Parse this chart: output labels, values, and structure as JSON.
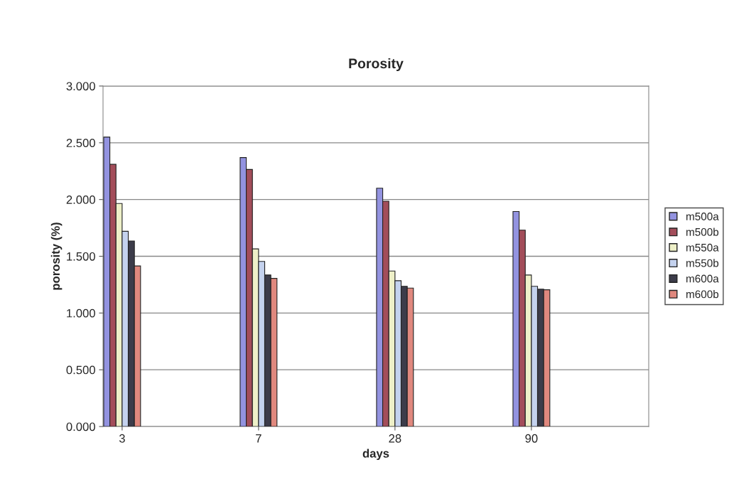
{
  "chart_data": {
    "type": "bar",
    "title": "Porosity",
    "xlabel": "days",
    "ylabel": "porosity (%)",
    "categories": [
      "3",
      "7",
      "28",
      "90"
    ],
    "series": [
      {
        "name": "m500a",
        "color": "#9393e0",
        "values": [
          2.55,
          2.37,
          2.1,
          1.895
        ]
      },
      {
        "name": "m500b",
        "color": "#a34d5a",
        "values": [
          2.31,
          2.265,
          1.985,
          1.73
        ]
      },
      {
        "name": "m550a",
        "color": "#eef0c8",
        "values": [
          1.965,
          1.565,
          1.37,
          1.335
        ]
      },
      {
        "name": "m550b",
        "color": "#c4d2ee",
        "values": [
          1.72,
          1.455,
          1.285,
          1.235
        ]
      },
      {
        "name": "m600a",
        "color": "#3c3c4a",
        "values": [
          1.635,
          1.335,
          1.235,
          1.21
        ]
      },
      {
        "name": "m600b",
        "color": "#e0887e",
        "values": [
          1.415,
          1.305,
          1.22,
          1.205
        ]
      }
    ],
    "ylim": [
      0,
      3
    ],
    "yticks": [
      {
        "value": 0,
        "label": "0.000"
      },
      {
        "value": 0.5,
        "label": "0.500"
      },
      {
        "value": 1,
        "label": "1.000"
      },
      {
        "value": 1.5,
        "label": "1.500"
      },
      {
        "value": 2,
        "label": "2.000"
      },
      {
        "value": 2.5,
        "label": "2.500"
      },
      {
        "value": 3,
        "label": "3.000"
      }
    ],
    "grid": "y",
    "legend": "right"
  }
}
